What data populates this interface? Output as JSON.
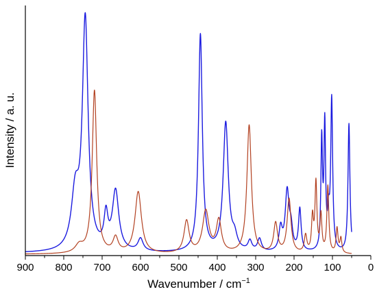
{
  "chart_data": {
    "type": "line",
    "xlabel": "Wavenumber / cm",
    "xlabel_sup": "−1",
    "ylabel": "Intensity / a. u.",
    "xlim": [
      900,
      0
    ],
    "xaxis_reversed": true,
    "ylim": [
      0,
      1
    ],
    "x_ticks": [
      900,
      800,
      700,
      600,
      500,
      400,
      300,
      200,
      100,
      0
    ],
    "x_tick_labels": [
      "900",
      "800",
      "700",
      "600",
      "500",
      "400",
      "300",
      "200",
      "100",
      "0"
    ],
    "grid": false,
    "legend": "none",
    "series": [
      {
        "color": "#1a1adf",
        "x_range": [
          900,
          50
        ],
        "baseline": 0.01,
        "peaks": [
          [
            770,
            0.22,
            12
          ],
          [
            744,
            0.93,
            9
          ],
          [
            690,
            0.13,
            6
          ],
          [
            665,
            0.24,
            10
          ],
          [
            600,
            0.05,
            8
          ],
          [
            444,
            0.88,
            6
          ],
          [
            378,
            0.52,
            8
          ],
          [
            355,
            0.05,
            8
          ],
          [
            315,
            0.04,
            6
          ],
          [
            290,
            0.05,
            6
          ],
          [
            235,
            0.09,
            5
          ],
          [
            218,
            0.24,
            6
          ],
          [
            208,
            0.08,
            5
          ],
          [
            185,
            0.17,
            4
          ],
          [
            128,
            0.44,
            2.5
          ],
          [
            120,
            0.5,
            2.5
          ],
          [
            110,
            0.12,
            3
          ],
          [
            102,
            0.61,
            3
          ],
          [
            57,
            0.52,
            3
          ]
        ]
      },
      {
        "color": "#b24020",
        "x_range": [
          900,
          50
        ],
        "baseline": 0.005,
        "peaks": [
          [
            760,
            0.03,
            12
          ],
          [
            720,
            0.66,
            7
          ],
          [
            665,
            0.06,
            8
          ],
          [
            606,
            0.25,
            10
          ],
          [
            480,
            0.13,
            8
          ],
          [
            430,
            0.17,
            10
          ],
          [
            396,
            0.13,
            8
          ],
          [
            317,
            0.52,
            7
          ],
          [
            248,
            0.12,
            6
          ],
          [
            213,
            0.22,
            6
          ],
          [
            170,
            0.07,
            4
          ],
          [
            152,
            0.14,
            3
          ],
          [
            143,
            0.28,
            3
          ],
          [
            130,
            0.15,
            3
          ],
          [
            112,
            0.27,
            3
          ],
          [
            88,
            0.1,
            3
          ],
          [
            78,
            0.06,
            3
          ]
        ]
      }
    ]
  }
}
